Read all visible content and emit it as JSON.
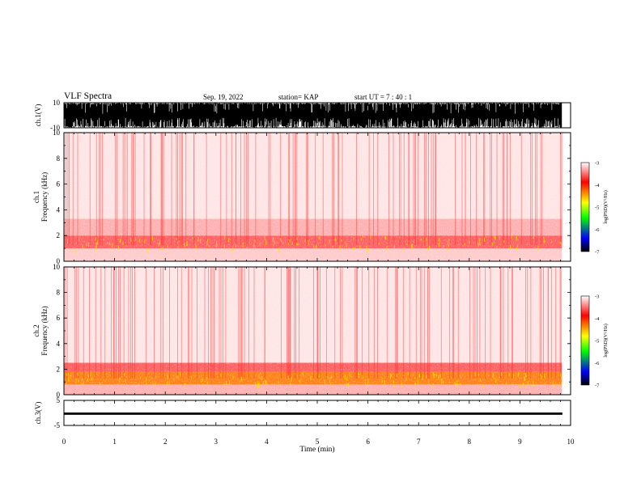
{
  "header": {
    "title": "VLF Spectra",
    "date": "Sep. 19, 2022",
    "station": "station= KAP",
    "start": "start UT =   7 : 40 : 1"
  },
  "colors": {
    "waveform": "#000000",
    "colorbar_stops": [
      "#ffffff",
      "#ff0000",
      "#ffff00",
      "#00ff00",
      "#0000ff",
      "#000000"
    ]
  },
  "chart_data": [
    {
      "type": "line",
      "panel": "ch.1 waveform",
      "ylabel": "ch.1(V)",
      "ylim": [
        -10,
        10
      ],
      "yticks": [
        "10",
        "-10"
      ],
      "x_range_min": [
        0,
        10
      ],
      "description_of_data": "dense oscillation mostly saturating between -10 and 10"
    },
    {
      "type": "heatmap",
      "panel": "ch.1 spectrogram",
      "ylabel": "ch.1\nFrequency (kHz)",
      "ylim": [
        0,
        10
      ],
      "yticks": [
        "0",
        "2",
        "4",
        "6",
        "8",
        "10"
      ],
      "x_range_min": [
        0,
        9.83
      ],
      "colorbar": {
        "label": "log(PSD)(V²/Hz)",
        "range": [
          -7,
          -3
        ],
        "ticks": [
          "-3",
          "-4",
          "-5",
          "-6",
          "-7"
        ]
      },
      "bands_khz": [
        {
          "from": 0.0,
          "to": 1.0,
          "log_psd": -3.2
        },
        {
          "from": 1.0,
          "to": 2.0,
          "log_psd": -3.6
        },
        {
          "from": 2.0,
          "to": 3.3,
          "log_psd": -3.3
        },
        {
          "from": 3.3,
          "to": 10.0,
          "log_psd": -3.1
        }
      ]
    },
    {
      "type": "heatmap",
      "panel": "ch.2 spectrogram",
      "ylabel": "ch.2\nFrequency (kHz)",
      "ylim": [
        0,
        10
      ],
      "yticks": [
        "0",
        "2",
        "4",
        "6",
        "8",
        "10"
      ],
      "x_range_min": [
        0,
        9.83
      ],
      "colorbar": {
        "label": "log(PSD)(V²/Hz)",
        "range": [
          -7,
          -3
        ],
        "ticks": [
          "-3",
          "-4",
          "-5",
          "-6",
          "-7"
        ]
      },
      "bands_khz": [
        {
          "from": 0.0,
          "to": 0.8,
          "log_psd": -3.3
        },
        {
          "from": 0.8,
          "to": 1.8,
          "log_psd": -4.3
        },
        {
          "from": 1.8,
          "to": 2.5,
          "log_psd": -3.6
        },
        {
          "from": 2.5,
          "to": 10.0,
          "log_psd": -3.1
        }
      ]
    },
    {
      "type": "line",
      "panel": "ch.3 waveform",
      "ylabel": "ch.3(V)",
      "ylim": [
        -5,
        5
      ],
      "yticks": [
        "5",
        "-5"
      ],
      "x_range_min": [
        0,
        9.83
      ],
      "level_v": -0.3,
      "band_halfwidth_v": 0.45
    },
    {
      "type": "axis",
      "xlabel": "Time (min)",
      "xlim": [
        0,
        10
      ],
      "xticks": [
        "0",
        "1",
        "2",
        "3",
        "4",
        "5",
        "6",
        "7",
        "8",
        "9",
        "10"
      ]
    }
  ]
}
